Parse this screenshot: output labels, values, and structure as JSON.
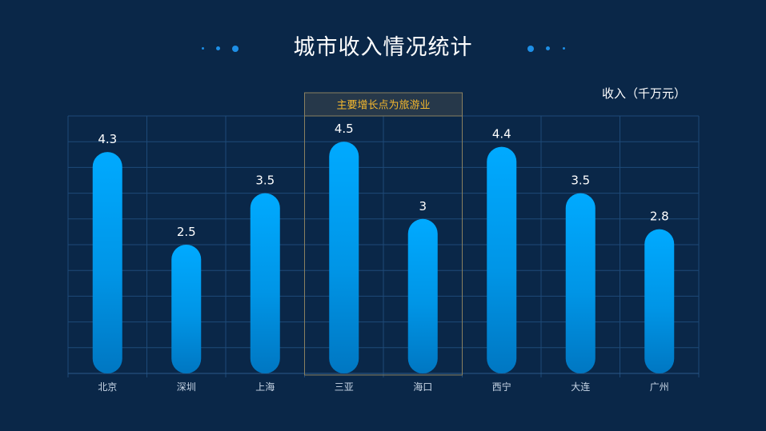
{
  "title": "城市收入情况统计",
  "colors": {
    "background": "#0a2748",
    "bar_top": "#00aaff",
    "bar_bottom": "#0077c2",
    "grid": "#1e4a78",
    "highlight_border": "#8a8060",
    "highlight_text": "#f5b82e",
    "accent_dots": "#1e8fe6"
  },
  "chart_data": {
    "type": "bar",
    "title": "城市收入情况统计",
    "ylabel": "收入（千万元）",
    "xlabel": "",
    "categories": [
      "北京",
      "深圳",
      "上海",
      "三亚",
      "海口",
      "西宁",
      "大连",
      "广州"
    ],
    "values": [
      4.3,
      2.5,
      3.5,
      4.5,
      3,
      4.4,
      3.5,
      2.8
    ],
    "value_labels": [
      "4.3",
      "2.5",
      "3.5",
      "4.5",
      "3",
      "4.4",
      "3.5",
      "2.8"
    ],
    "ylim": [
      0,
      5
    ],
    "grid": true,
    "legend": "none",
    "annotation": {
      "text": "主要增长点为旅游业",
      "categories": [
        "三亚",
        "海口"
      ]
    }
  }
}
